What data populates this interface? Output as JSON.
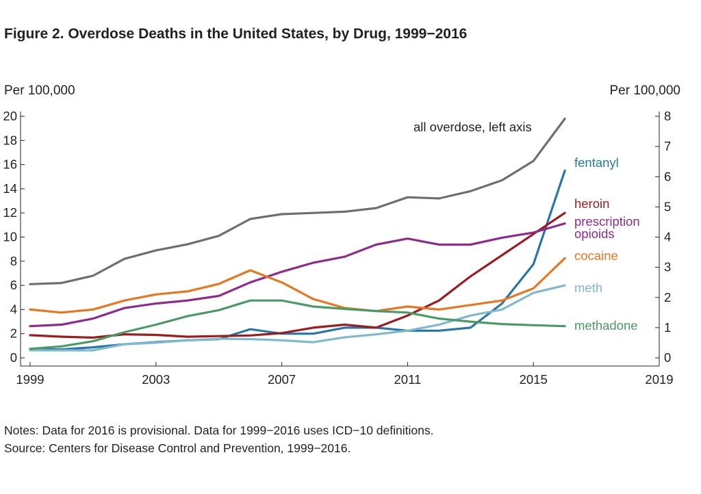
{
  "title": "Figure 2. Overdose Deaths in the United States, by Drug, 1999−2016",
  "left_axis_unit": "Per 100,000",
  "right_axis_unit": "Per 100,000",
  "notes": "Notes: Data for 2016 is provisional. Data for 1999−2016 uses ICD−10 definitions.",
  "source": "Source: Centers for Disease Control and Prevention, 1999−2016.",
  "chart_data": {
    "type": "line",
    "x_ticks": [
      1999,
      2003,
      2007,
      2011,
      2015,
      2019
    ],
    "xlim": [
      1999,
      2019
    ],
    "ylim_left": [
      0,
      20
    ],
    "ylim_right": [
      0,
      8
    ],
    "left_ticks": [
      0,
      2,
      4,
      6,
      8,
      10,
      12,
      14,
      16,
      18,
      20
    ],
    "right_ticks": [
      0,
      1,
      2,
      3,
      4,
      5,
      6,
      7,
      8
    ],
    "grid": false,
    "x": [
      1999,
      2000,
      2001,
      2002,
      2003,
      2004,
      2005,
      2006,
      2007,
      2008,
      2009,
      2010,
      2011,
      2012,
      2013,
      2014,
      2015,
      2016
    ],
    "series": [
      {
        "name": "all overdose, left axis",
        "axis": "left",
        "color": "#6d6e70",
        "label_lines": [
          "all overdose, left axis"
        ],
        "values": [
          6.1,
          6.2,
          6.8,
          8.2,
          8.9,
          9.4,
          10.1,
          11.5,
          11.9,
          12.0,
          12.1,
          12.4,
          13.3,
          13.2,
          13.8,
          14.7,
          16.3,
          19.8
        ]
      },
      {
        "name": "fentanyl",
        "axis": "right",
        "color": "#2876a8",
        "label_lines": [
          "fentanyl"
        ],
        "values": [
          0.28,
          0.28,
          0.35,
          0.45,
          0.52,
          0.58,
          0.62,
          0.95,
          0.8,
          0.8,
          1.0,
          1.0,
          0.9,
          0.9,
          1.0,
          1.8,
          3.1,
          6.2
        ]
      },
      {
        "name": "heroin",
        "axis": "right",
        "color": "#9b1b1e",
        "label_lines": [
          "heroin"
        ],
        "values": [
          0.75,
          0.7,
          0.67,
          0.78,
          0.76,
          0.7,
          0.72,
          0.74,
          0.82,
          1.0,
          1.1,
          1.0,
          1.4,
          1.9,
          2.7,
          3.4,
          4.1,
          4.8
        ]
      },
      {
        "name": "prescription opioids",
        "axis": "right",
        "color": "#8e2a8c",
        "label_lines": [
          "prescription",
          "opioids"
        ],
        "values": [
          1.05,
          1.1,
          1.3,
          1.65,
          1.8,
          1.9,
          2.05,
          2.5,
          2.85,
          3.15,
          3.35,
          3.75,
          3.95,
          3.75,
          3.75,
          3.98,
          4.15,
          4.45
        ]
      },
      {
        "name": "cocaine",
        "axis": "right",
        "color": "#e8761f",
        "label_lines": [
          "cocaine"
        ],
        "values": [
          1.6,
          1.5,
          1.6,
          1.9,
          2.1,
          2.2,
          2.45,
          2.9,
          2.5,
          1.95,
          1.65,
          1.55,
          1.7,
          1.6,
          1.75,
          1.9,
          2.3,
          3.3
        ]
      },
      {
        "name": "meth",
        "axis": "right",
        "color": "#7fb8cf",
        "label_lines": [
          "meth"
        ],
        "values": [
          0.25,
          0.25,
          0.25,
          0.45,
          0.5,
          0.58,
          0.63,
          0.62,
          0.58,
          0.52,
          0.68,
          0.78,
          0.9,
          1.1,
          1.4,
          1.6,
          2.15,
          2.4
        ]
      },
      {
        "name": "methadone",
        "axis": "right",
        "color": "#4b9a66",
        "label_lines": [
          "methadone"
        ],
        "values": [
          0.3,
          0.38,
          0.55,
          0.85,
          1.1,
          1.38,
          1.58,
          1.9,
          1.9,
          1.7,
          1.62,
          1.55,
          1.5,
          1.3,
          1.2,
          1.12,
          1.08,
          1.05
        ]
      }
    ]
  }
}
